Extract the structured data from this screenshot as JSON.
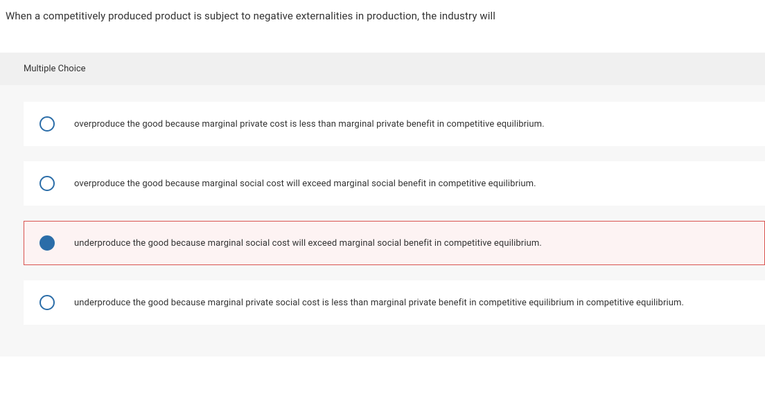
{
  "question": {
    "stem": "When a competitively produced product is subject to negative externalities in production, the industry will",
    "type_label": "Multiple Choice"
  },
  "options": [
    {
      "text": "overproduce the good because marginal private cost is less than marginal private benefit in competitive equilibrium.",
      "selected": false
    },
    {
      "text": "overproduce the good because marginal social cost will exceed marginal social benefit in competitive equilibrium.",
      "selected": false
    },
    {
      "text": "underproduce the good because marginal social cost will exceed marginal social benefit in competitive equilibrium.",
      "selected": true
    },
    {
      "text": "underproduce the good because marginal private social cost is less than marginal private benefit in competitive equilibrium in competitive equilibrium.",
      "selected": false
    }
  ],
  "colors": {
    "radio_border": "#2b6da8",
    "radio_fill": "#2b6da8",
    "selected_border": "#d9534f",
    "selected_bg": "#fdf3f3",
    "header_bg": "#f0f0f0",
    "options_bg": "#f7f7f7",
    "option_bg": "#ffffff"
  }
}
